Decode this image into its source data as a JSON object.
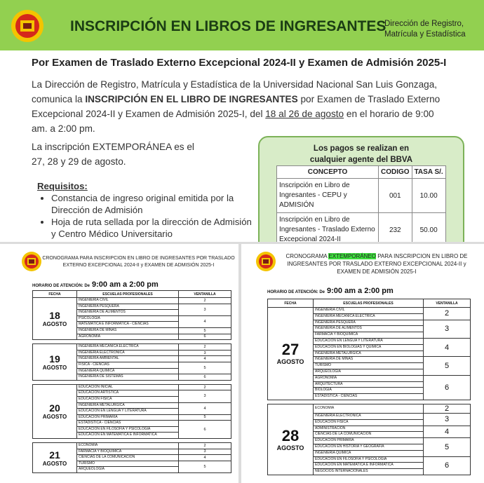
{
  "header": {
    "title": "INSCRIPCIÓN EN LIBROS DE INGRESANTES",
    "office": [
      "Dirección de Registro,",
      "Matrícula y Estadística"
    ]
  },
  "subtitle": "Por Examen de Traslado Externo Excepcional 2024-II y Examen de Admisión 2025-I",
  "announcement": [
    "La Dirección de Registro, Matrícula y Estadística de la Universidad Nacional San Luis Gonzaga, comunica la ",
    "INSCRIPCIÓN EN EL LIBRO DE INGRESANTES",
    " por Examen de Traslado Externo Excepcional 2024-II y Examen de Admisión 2025-I, del ",
    "18 al 26 de agosto",
    " en el horario de 9:00 am. a 2:00 pm."
  ],
  "late_registration": "La inscripción EXTEMPORÁNEA es el 27, 28 y 29 de agosto.",
  "requirements": {
    "title": "Requisitos:",
    "items": [
      "Constancia de ingreso original emitida por la Dirección de Admisión",
      "Hoja de ruta sellada por la dirección de Admisión y Centro Médico Universitario"
    ]
  },
  "payments": {
    "title": "Los pagos se realizan en cualquier agente del BBVA",
    "headers": [
      "CONCEPTO",
      "CODIGO",
      "TASA S/."
    ],
    "rows": [
      [
        "Inscripción en Libro de Ingresantes - CEPU y ADMISIÓN",
        "001",
        "10.00"
      ],
      [
        "Inscripción en Libro de Ingresantes - Traslado Externo Excepcional 2024-II",
        "232",
        "50.00"
      ]
    ]
  },
  "left_schedule": {
    "title": [
      "CRONOGRAMA PARA INSCRIPCION EN LIBRO DE INGRESANTES POR TRASLADO EXTERNO EXCEPCIONAL 2024-II y EXAMEN DE ADMISIÓN 2025-I"
    ],
    "hours_label": "HORARIO DE ATENCIÓN: De",
    "hours": "9:00 am a 2:00 pm",
    "headers": [
      "FECHA",
      "ESCUELAS PROFESIONALES",
      "VENTANILLA"
    ],
    "days": [
      {
        "day": "18",
        "month": "AGOSTO",
        "groups": [
          {
            "schools": [
              "INGENIERIA CIVIL"
            ],
            "window": "2"
          },
          {
            "schools": [
              "INGENIERIA PESQUERA",
              "INGENIERIA DE ALIMENTOS"
            ],
            "window": "3"
          },
          {
            "schools": [
              "PSICOLOGIA",
              "MATEMATICA E INFORMATICA - CIENCIAS"
            ],
            "window": "4"
          },
          {
            "schools": [
              "INGENIERIA DE MINAS"
            ],
            "window": "5"
          },
          {
            "schools": [
              "AGRONOMIA"
            ],
            "window": "6"
          }
        ]
      },
      {
        "day": "19",
        "month": "AGOSTO",
        "groups": [
          {
            "schools": [
              "INGENIERIA MECANICA ELECTRICA"
            ],
            "window": "2"
          },
          {
            "schools": [
              "INGENIERIA ELECTRONICA"
            ],
            "window": "3"
          },
          {
            "schools": [
              "INGENIERIA AMBIENTAL"
            ],
            "window": "4"
          },
          {
            "schools": [
              "FISICA - CIENCIAS",
              "INGENIERIA QUIMICA"
            ],
            "window": "5"
          },
          {
            "schools": [
              "INGENIERIA DE SISTEMAS"
            ],
            "window": "6"
          }
        ]
      },
      {
        "day": "20",
        "month": "AGOSTO",
        "groups": [
          {
            "schools": [
              "EDUCACION INICIAL"
            ],
            "window": "2"
          },
          {
            "schools": [
              "EDUCACION ARTISTICA",
              "EDUCACION FISICA"
            ],
            "window": "3"
          },
          {
            "schools": [
              "INGENIERIA METALURGICA",
              "EDUCACION EN LENGUA Y LITERATURA"
            ],
            "window": "4"
          },
          {
            "schools": [
              "EDUCACION PRIMARIA"
            ],
            "window": "5"
          },
          {
            "schools": [
              "ESTADISTICA - CIENCIAS",
              "EDUCACION EN FILOSOFIA Y PSICOLOGIA",
              "EDUCACION EN MATEMATICA E INFORMATICA"
            ],
            "window": "6"
          }
        ]
      },
      {
        "day": "21",
        "month": "AGOSTO",
        "groups": [
          {
            "schools": [
              "ECONOMIA"
            ],
            "window": "2"
          },
          {
            "schools": [
              "FARMACIA Y BIOQUIMICA"
            ],
            "window": "3"
          },
          {
            "schools": [
              "CIENCIAS DE LA COMUNICACIÓN"
            ],
            "window": "4"
          },
          {
            "schools": [
              "TURISMO",
              "ARQUEOLOGIA"
            ],
            "window": "5"
          }
        ]
      }
    ]
  },
  "right_schedule": {
    "title": [
      "CRONOGRAMA ",
      "EXTEMPORÁNEO",
      " PARA INSCRIPCION EN LIBRO DE INGRESANTES POR TRASLADO EXTERNO EXCEPCIONAL 2024-II y EXAMEN DE ADMISIÓN 2025-I"
    ],
    "hours_label": "HORARIO DE ATENCIÓN: De",
    "hours": "9:00 am a 2:00 pm",
    "headers": [
      "FECHA",
      "ESCUELAS PROFESIONALES",
      "VENTANILLA"
    ],
    "days": [
      {
        "day": "27",
        "month": "AGOSTO",
        "groups": [
          {
            "schools": [
              "INGENIERIA CIVIL",
              "INGENIERIA MECANICA ELECTRICA"
            ],
            "window": "2"
          },
          {
            "schools": [
              "INGENIERIA PESQUERA",
              "INGENIERIA DE ALIMENTOS",
              "FARMACIA Y BIOQUIMICA"
            ],
            "window": "3"
          },
          {
            "schools": [
              "EDUCACION EN LENGUA Y LITERATURA",
              "EDUCACION EN BIOLOGIAS Y QUIMICA",
              "INGENIERIA METALURGICA"
            ],
            "window": "4"
          },
          {
            "schools": [
              "INGENIERIA DE MINAS",
              "TURISMO",
              "ARQUEOLOGIA"
            ],
            "window": "5"
          },
          {
            "schools": [
              "AGRONOMIA",
              "ARQUITECTURA",
              "BIOLOGIA",
              "ESTADISTICA - CIENCIAS"
            ],
            "window": "6"
          }
        ]
      },
      {
        "day": "28",
        "month": "AGOSTO",
        "groups": [
          {
            "schools": [
              "ECONOMIA"
            ],
            "window": "2"
          },
          {
            "schools": [
              "INGENIERIA ELECTRONICA",
              "EDUCACION FISICA"
            ],
            "window": "3"
          },
          {
            "schools": [
              "ADMINISTRACION",
              "CIENCIAS DE LA COMUNICACIÓN"
            ],
            "window": "4"
          },
          {
            "schools": [
              "EDUCACION PRIMARIA",
              "EDUCACION EN HISTORIA Y GEOGRAFIA",
              "INGENIERIA QUIMICA"
            ],
            "window": "5"
          },
          {
            "schools": [
              "EDUCACION EN FILOSOFIA Y PSICOLOGIA",
              "EDUCACION EN MATEMATICA E INFORMATICA",
              "NEGOCIOS INTERNACIONALES"
            ],
            "window": "6"
          }
        ]
      }
    ]
  }
}
